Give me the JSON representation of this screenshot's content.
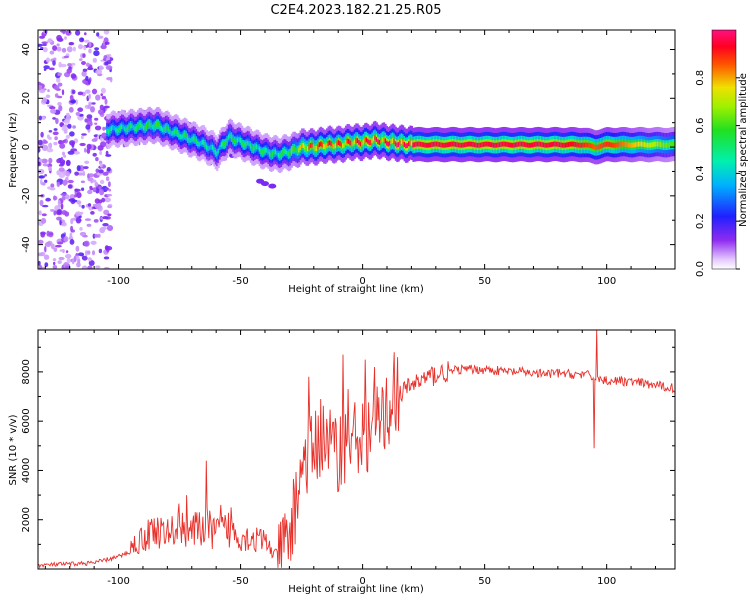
{
  "figure": {
    "title": "C2E4.2023.182.21.25.R05"
  },
  "chart_data": [
    {
      "type": "heatmap",
      "xlabel": "Height of straight line (km)",
      "ylabel": "Frequency (Hz)",
      "xlim": [
        -133,
        128
      ],
      "ylim": [
        -50,
        48
      ],
      "xticks": [
        -100,
        -50,
        0,
        50,
        100
      ],
      "yticks": [
        -40,
        -20,
        0,
        20,
        40
      ],
      "colorbar": {
        "label": "Normalized spectral amplitude",
        "range": [
          0.0,
          1.0
        ],
        "ticks": [
          0.0,
          0.2,
          0.4,
          0.6,
          0.8
        ],
        "colormap": "gist_rainbow-like (white-purple-blue-cyan-green-yellow-red-pink)"
      },
      "ridge": {
        "description": "main frequency band",
        "x": [
          -105,
          -95,
          -85,
          -80,
          -75,
          -70,
          -65,
          -60,
          -55,
          -50,
          -45,
          -40,
          -35,
          -30,
          -25,
          -20,
          -15,
          -10,
          -5,
          0,
          5,
          10,
          20,
          40,
          60,
          80,
          90,
          95,
          100,
          128
        ],
        "frequency": [
          7,
          8,
          9,
          7,
          5,
          3,
          1,
          -2,
          4,
          2,
          0,
          -2,
          -3,
          -2,
          0,
          0,
          1,
          1,
          2,
          2,
          3,
          2,
          1,
          1,
          1,
          1,
          1,
          0,
          1,
          1
        ],
        "amplitude": [
          0.45,
          0.5,
          0.55,
          0.5,
          0.5,
          0.5,
          0.45,
          0.45,
          0.55,
          0.5,
          0.5,
          0.5,
          0.5,
          0.55,
          0.75,
          0.85,
          0.85,
          0.85,
          0.85,
          0.9,
          0.9,
          0.9,
          0.95,
          0.95,
          0.95,
          0.95,
          0.9,
          0.85,
          0.9,
          0.6
        ]
      },
      "noise_region_x": [
        -133,
        -103
      ]
    },
    {
      "type": "line",
      "xlabel": "Height of straight line (km)",
      "ylabel": "SNR (10 * v/v)",
      "xlim": [
        -133,
        128
      ],
      "ylim": [
        0,
        9700
      ],
      "xticks": [
        -100,
        -50,
        0,
        50,
        100
      ],
      "yticks": [
        2000,
        4000,
        6000,
        8000
      ],
      "series": [
        {
          "color": "#e8302a",
          "x": [
            -133,
            -120,
            -110,
            -100,
            -95,
            -90,
            -85,
            -80,
            -75,
            -70,
            -65,
            -60,
            -55,
            -50,
            -45,
            -40,
            -35,
            -30,
            -25,
            -20,
            -15,
            -10,
            -5,
            0,
            5,
            10,
            15,
            20,
            25,
            30,
            35,
            40,
            45,
            50,
            55,
            60,
            65,
            70,
            75,
            80,
            85,
            90,
            93,
            95,
            97,
            100,
            110,
            120,
            128
          ],
          "y": [
            150,
            200,
            250,
            500,
            700,
            1000,
            1300,
            1100,
            1500,
            1200,
            1400,
            1200,
            1300,
            1100,
            1000,
            900,
            400,
            1000,
            4000,
            4800,
            5200,
            4500,
            5200,
            5200,
            5600,
            6200,
            7000,
            7500,
            7700,
            7900,
            8000,
            8100,
            8100,
            8100,
            8050,
            8000,
            8000,
            7950,
            7900,
            7950,
            7900,
            7900,
            7850,
            7700,
            7700,
            7650,
            7600,
            7450,
            7350
          ]
        }
      ],
      "spikes": [
        {
          "x": -87,
          "y": 1900
        },
        {
          "x": -72,
          "y": 3000
        },
        {
          "x": -64,
          "y": 4400
        },
        {
          "x": -58,
          "y": 2600
        },
        {
          "x": -54,
          "y": 2500
        },
        {
          "x": -22,
          "y": 7800
        },
        {
          "x": -17,
          "y": 6900
        },
        {
          "x": -8,
          "y": 8700
        },
        {
          "x": -6,
          "y": 7300
        },
        {
          "x": 1,
          "y": 8500
        },
        {
          "x": 5,
          "y": 8200
        },
        {
          "x": 13,
          "y": 8800
        },
        {
          "x": 95,
          "y": 4900
        },
        {
          "x": 96,
          "y": 9700
        }
      ]
    }
  ]
}
